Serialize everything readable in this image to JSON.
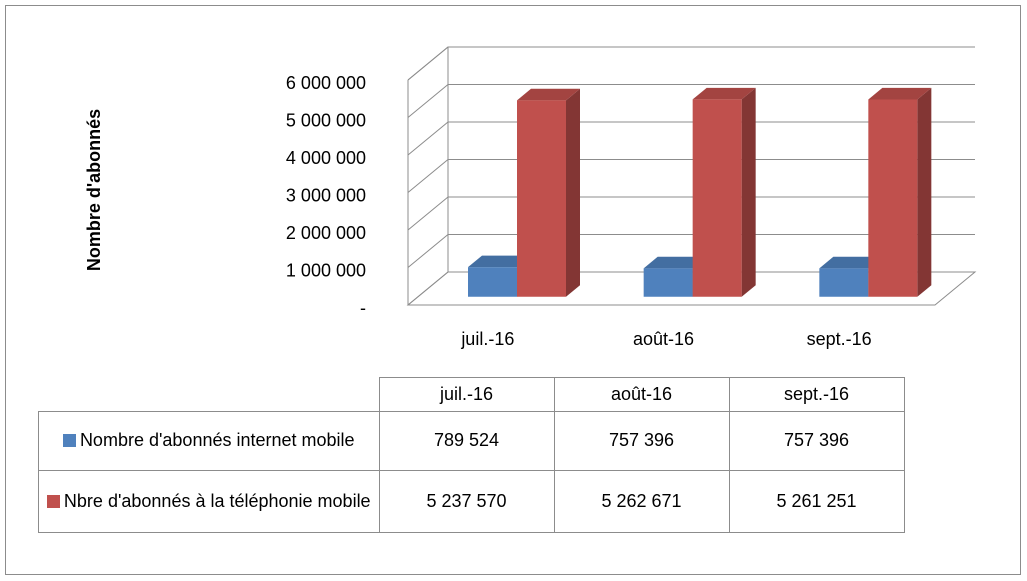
{
  "chart_data": {
    "type": "bar3d",
    "y_label": "Nombre d'abonnés",
    "categories": [
      "juil.-16",
      "août-16",
      "sept.-16"
    ],
    "series": [
      {
        "name": "Nombre d'abonnés internet mobile",
        "color": "#4f81bd",
        "values": [
          789524,
          757396,
          757396
        ],
        "value_labels": [
          "789 524",
          "757 396",
          "757 396"
        ]
      },
      {
        "name": "Nbre  d'abonnés à la téléphonie mobile",
        "color": "#c0504d",
        "values": [
          5237570,
          5262671,
          5261251
        ],
        "value_labels": [
          "5 237 570",
          "5 262 671",
          "5 261 251"
        ]
      }
    ],
    "ylim": [
      0,
      6000000
    ],
    "yticks": [
      {
        "value": 0,
        "label": "-"
      },
      {
        "value": 1000000,
        "label": "1 000 000"
      },
      {
        "value": 2000000,
        "label": "2 000 000"
      },
      {
        "value": 3000000,
        "label": "3 000 000"
      },
      {
        "value": 4000000,
        "label": "4 000 000"
      },
      {
        "value": 5000000,
        "label": "5 000 000"
      },
      {
        "value": 6000000,
        "label": "6 000 000"
      }
    ],
    "grid": true,
    "data_table": true
  }
}
